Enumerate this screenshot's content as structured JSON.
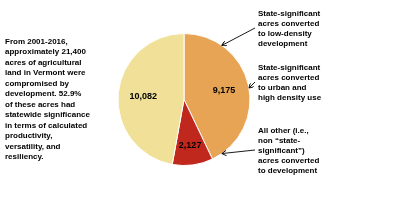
{
  "chart_data": {
    "type": "pie",
    "categories": [
      "State-significant\nacres converted\nto low-density\ndevelopment",
      "State-significant\nacres converted\nto urban and\nhigh density use",
      "All other (i.e.,\nnon “state-\nsignificant”)\nacres converted\nto development"
    ],
    "values": [
      9175,
      2127,
      10082
    ],
    "value_labels": [
      "9,175",
      "2,127",
      "10,082"
    ],
    "colors": [
      "#E8A455",
      "#C0281E",
      "#F0E098"
    ],
    "data_labels": true,
    "annotations": [
      "From 2001-2016,\napproximately 21,400\nacres of agricultural\nland in Vermont were\ncompromised by\ndevelopment. 52.9%\nof these acres had\nstatewide significance\nin terms of calculated\nproductivity,\nversatility, and\nresiliency."
    ]
  }
}
